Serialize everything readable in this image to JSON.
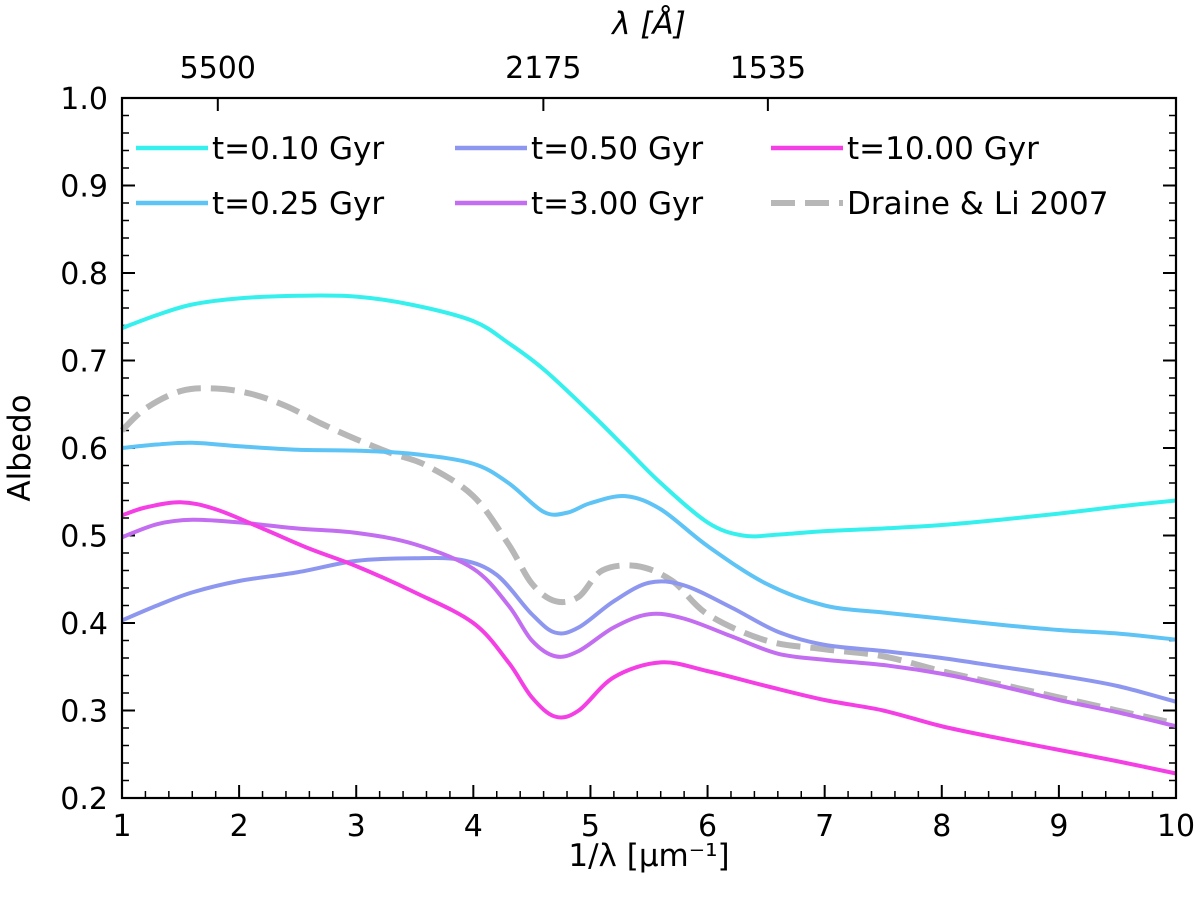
{
  "chart_data": {
    "type": "line",
    "xlabel": "1/λ [µm⁻¹]",
    "ylabel": "Albedo",
    "top_axis_label": "λ [Å]",
    "xlim": [
      1,
      10
    ],
    "ylim": [
      0.2,
      1.0
    ],
    "x_ticks": [
      1,
      2,
      3,
      4,
      5,
      6,
      7,
      8,
      9,
      10
    ],
    "x_tick_labels": [
      "1",
      "2",
      "3",
      "4",
      "5",
      "6",
      "7",
      "8",
      "9",
      "10"
    ],
    "y_ticks": [
      0.2,
      0.3,
      0.4,
      0.5,
      0.6,
      0.7,
      0.8,
      0.9,
      1.0
    ],
    "y_tick_labels": [
      "0.2",
      "0.3",
      "0.4",
      "0.5",
      "0.6",
      "0.7",
      "0.8",
      "0.9",
      "1.0"
    ],
    "top_ticks": [
      {
        "label": "5500",
        "x": 1.818
      },
      {
        "label": "2175",
        "x": 4.598
      },
      {
        "label": "1535",
        "x": 6.515
      }
    ],
    "series": [
      {
        "name": "t=0.10 Gyr",
        "color": "#36f0ee",
        "dashed": false,
        "x": [
          1.0,
          1.3,
          1.6,
          2.0,
          2.5,
          3.0,
          3.5,
          4.0,
          4.3,
          4.6,
          5.0,
          5.3,
          5.6,
          6.0,
          6.3,
          6.6,
          7.0,
          7.5,
          8.0,
          8.5,
          9.0,
          9.5,
          10.0
        ],
        "values": [
          0.737,
          0.752,
          0.764,
          0.771,
          0.774,
          0.773,
          0.763,
          0.745,
          0.72,
          0.69,
          0.64,
          0.6,
          0.56,
          0.515,
          0.5,
          0.501,
          0.505,
          0.508,
          0.512,
          0.518,
          0.525,
          0.533,
          0.54
        ]
      },
      {
        "name": "t=0.25 Gyr",
        "color": "#5ec3f5",
        "dashed": false,
        "x": [
          1.0,
          1.3,
          1.6,
          2.0,
          2.5,
          3.0,
          3.5,
          4.0,
          4.3,
          4.6,
          4.8,
          5.0,
          5.3,
          5.6,
          6.0,
          6.5,
          7.0,
          7.5,
          8.0,
          8.5,
          9.0,
          9.5,
          10.0
        ],
        "values": [
          0.6,
          0.604,
          0.606,
          0.602,
          0.598,
          0.597,
          0.593,
          0.582,
          0.56,
          0.527,
          0.526,
          0.537,
          0.545,
          0.53,
          0.488,
          0.445,
          0.42,
          0.412,
          0.405,
          0.398,
          0.392,
          0.388,
          0.381
        ]
      },
      {
        "name": "t=0.50 Gyr",
        "color": "#8e97ef",
        "dashed": false,
        "x": [
          1.0,
          1.3,
          1.6,
          2.0,
          2.5,
          3.0,
          3.5,
          3.9,
          4.2,
          4.5,
          4.7,
          4.9,
          5.2,
          5.5,
          5.8,
          6.2,
          6.6,
          7.0,
          7.5,
          8.0,
          8.5,
          9.0,
          9.5,
          10.0
        ],
        "values": [
          0.403,
          0.42,
          0.435,
          0.448,
          0.458,
          0.471,
          0.474,
          0.472,
          0.455,
          0.41,
          0.389,
          0.395,
          0.425,
          0.446,
          0.443,
          0.418,
          0.39,
          0.375,
          0.368,
          0.36,
          0.35,
          0.34,
          0.328,
          0.31
        ]
      },
      {
        "name": "t=3.00 Gyr",
        "color": "#c36df0",
        "dashed": false,
        "x": [
          1.0,
          1.3,
          1.6,
          2.0,
          2.5,
          3.0,
          3.5,
          4.0,
          4.3,
          4.5,
          4.7,
          4.9,
          5.2,
          5.5,
          5.8,
          6.2,
          6.6,
          7.0,
          7.5,
          8.0,
          8.5,
          9.0,
          9.5,
          10.0
        ],
        "values": [
          0.498,
          0.513,
          0.518,
          0.515,
          0.508,
          0.503,
          0.49,
          0.462,
          0.42,
          0.38,
          0.362,
          0.368,
          0.395,
          0.41,
          0.405,
          0.385,
          0.365,
          0.358,
          0.352,
          0.342,
          0.328,
          0.312,
          0.298,
          0.282
        ]
      },
      {
        "name": "t=10.00 Gyr",
        "color": "#f43fe5",
        "dashed": false,
        "x": [
          1.0,
          1.2,
          1.5,
          1.8,
          2.2,
          2.6,
          3.0,
          3.5,
          4.0,
          4.3,
          4.5,
          4.7,
          4.9,
          5.2,
          5.6,
          6.0,
          6.5,
          7.0,
          7.5,
          8.0,
          8.5,
          9.0,
          9.5,
          10.0
        ],
        "values": [
          0.523,
          0.532,
          0.538,
          0.53,
          0.508,
          0.485,
          0.465,
          0.435,
          0.4,
          0.355,
          0.315,
          0.293,
          0.3,
          0.338,
          0.355,
          0.345,
          0.328,
          0.312,
          0.3,
          0.282,
          0.268,
          0.255,
          0.242,
          0.228
        ]
      },
      {
        "name": "Draine & Li 2007",
        "color": "#b7b7b7",
        "dashed": true,
        "x": [
          1.0,
          1.2,
          1.5,
          1.8,
          2.1,
          2.4,
          2.7,
          3.0,
          3.3,
          3.6,
          4.0,
          4.3,
          4.5,
          4.7,
          4.9,
          5.1,
          5.4,
          5.7,
          6.0,
          6.5,
          7.0,
          7.5,
          8.0,
          8.5,
          9.0,
          9.5,
          10.0
        ],
        "values": [
          0.62,
          0.645,
          0.665,
          0.668,
          0.662,
          0.648,
          0.628,
          0.61,
          0.594,
          0.58,
          0.545,
          0.49,
          0.445,
          0.425,
          0.43,
          0.46,
          0.465,
          0.448,
          0.41,
          0.38,
          0.37,
          0.362,
          0.345,
          0.33,
          0.315,
          0.3,
          0.285
        ]
      }
    ]
  }
}
